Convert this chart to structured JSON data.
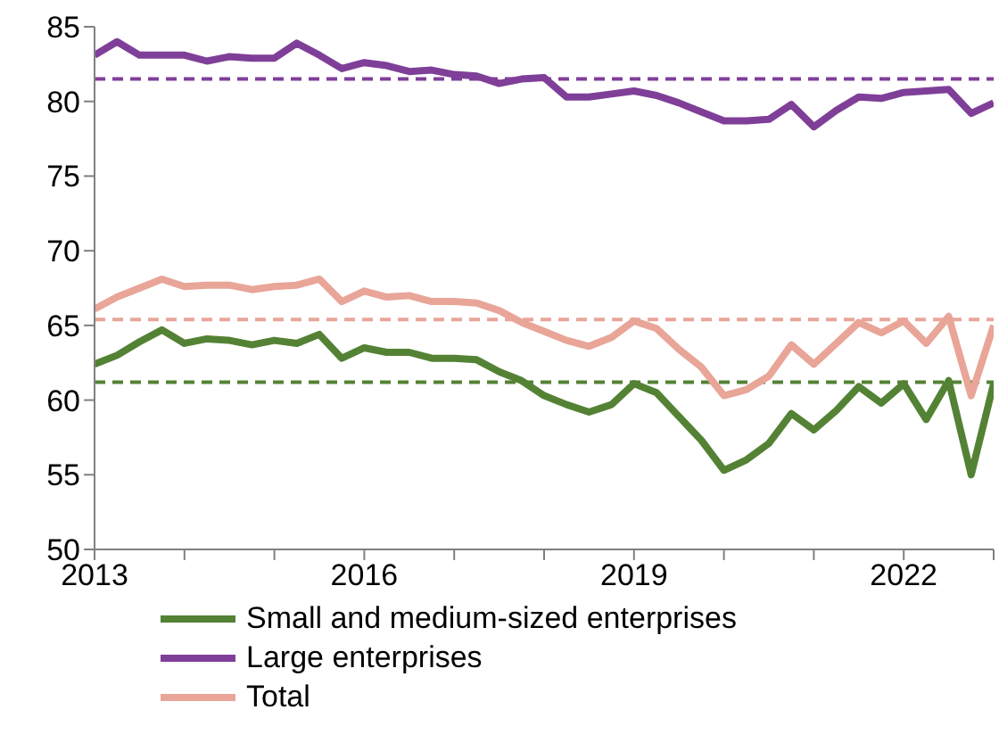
{
  "chart_data": {
    "type": "line",
    "x": [
      2013,
      2013.25,
      2013.5,
      2013.75,
      2014,
      2014.25,
      2014.5,
      2014.75,
      2015,
      2015.25,
      2015.5,
      2015.75,
      2016,
      2016.25,
      2016.5,
      2016.75,
      2017,
      2017.25,
      2017.5,
      2017.75,
      2018,
      2018.25,
      2018.5,
      2018.75,
      2019,
      2019.25,
      2019.5,
      2019.75,
      2020,
      2020.25,
      2020.5,
      2020.75,
      2021,
      2021.25,
      2021.5,
      2021.75,
      2022,
      2022.25,
      2022.5,
      2022.75,
      2023
    ],
    "series": [
      {
        "name": "Small and medium-sized enterprises",
        "color": "#548235",
        "values": [
          62.4,
          63.0,
          63.9,
          64.7,
          63.8,
          64.1,
          64.0,
          63.7,
          64.0,
          63.8,
          64.4,
          62.8,
          63.5,
          63.2,
          63.2,
          62.8,
          62.8,
          62.7,
          61.9,
          61.3,
          60.3,
          59.7,
          59.2,
          59.7,
          61.1,
          60.5,
          58.9,
          57.3,
          55.3,
          56.0,
          57.1,
          59.1,
          58.0,
          59.3,
          60.9,
          59.8,
          61.1,
          58.7,
          61.3,
          55.0,
          61.1
        ]
      },
      {
        "name": "Large enterprises",
        "color": "#7f3f98",
        "values": [
          83.1,
          84.0,
          83.1,
          83.1,
          83.1,
          82.7,
          83.0,
          82.9,
          82.9,
          83.9,
          83.1,
          82.2,
          82.6,
          82.4,
          82.0,
          82.1,
          81.8,
          81.7,
          81.2,
          81.5,
          81.6,
          80.3,
          80.3,
          80.5,
          80.7,
          80.4,
          79.9,
          79.3,
          78.7,
          78.7,
          78.8,
          79.8,
          78.3,
          79.4,
          80.3,
          80.2,
          80.6,
          80.7,
          80.8,
          79.2,
          79.9
        ]
      },
      {
        "name": "Total",
        "color": "#e8a598",
        "values": [
          66.1,
          66.9,
          67.5,
          68.1,
          67.6,
          67.7,
          67.7,
          67.4,
          67.6,
          67.7,
          68.1,
          66.6,
          67.3,
          66.9,
          67.0,
          66.6,
          66.6,
          66.5,
          66.0,
          65.2,
          64.6,
          64.0,
          63.6,
          64.2,
          65.3,
          64.8,
          63.4,
          62.2,
          60.3,
          60.7,
          61.6,
          63.7,
          62.4,
          63.8,
          65.2,
          64.5,
          65.3,
          63.8,
          65.6,
          60.3,
          65.0
        ]
      }
    ],
    "ref_lines": [
      {
        "axis": "y",
        "value": 61.2,
        "color": "#548235",
        "line_style": "dashed"
      },
      {
        "axis": "y",
        "value": 81.5,
        "color": "#7f3f98",
        "line_style": "dashed"
      },
      {
        "axis": "y",
        "value": 65.4,
        "color": "#e8a598",
        "line_style": "dashed"
      }
    ],
    "xlim": [
      2013,
      2023
    ],
    "xticks": [
      2013,
      {
        "value": 2014,
        "label": null
      },
      {
        "value": 2015,
        "label": null
      },
      2016,
      {
        "value": 2017,
        "label": null
      },
      {
        "value": 2018,
        "label": null
      },
      2019,
      {
        "value": 2020,
        "label": null
      },
      {
        "value": 2021,
        "label": null
      },
      2022,
      {
        "value": 2023,
        "label": null
      }
    ],
    "ylim": [
      50,
      85
    ],
    "yticks": [
      50,
      55,
      60,
      65,
      70,
      75,
      80,
      85
    ],
    "grid": false,
    "legend": "bottom",
    "marker": "none",
    "line_style": "solid"
  }
}
